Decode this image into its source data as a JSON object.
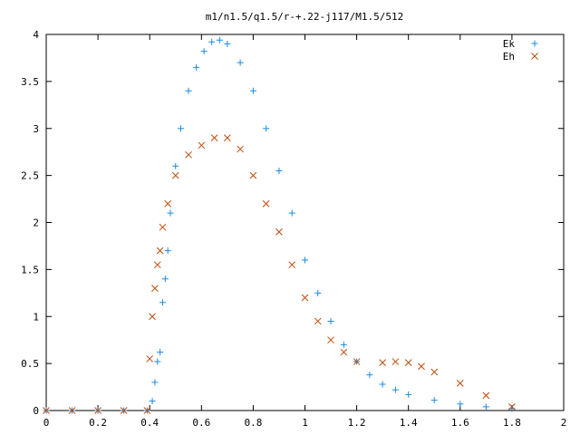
{
  "chart_data": {
    "type": "scatter",
    "title": "m1/n1.5/q1.5/r-+.22-j117/M1.5/512",
    "xlabel": "",
    "ylabel": "",
    "xlim": [
      0,
      2
    ],
    "ylim": [
      0,
      4
    ],
    "x_ticks": [
      "0",
      "0.2",
      "0.4",
      "0.6",
      "0.8",
      "1",
      "1.2",
      "1.4",
      "1.6",
      "1.8",
      "2"
    ],
    "y_ticks": [
      "0",
      "0.5",
      "1",
      "1.5",
      "2",
      "2.5",
      "3",
      "3.5",
      "4"
    ],
    "grid": false,
    "legend_position": "top-right",
    "series": [
      {
        "name": "Ek",
        "marker": "plus",
        "color": "#1a8de0",
        "x": [
          0.0,
          0.1,
          0.2,
          0.3,
          0.39,
          0.41,
          0.42,
          0.43,
          0.44,
          0.45,
          0.46,
          0.47,
          0.48,
          0.5,
          0.52,
          0.55,
          0.58,
          0.61,
          0.64,
          0.67,
          0.7,
          0.75,
          0.8,
          0.85,
          0.9,
          0.95,
          1.0,
          1.05,
          1.1,
          1.15,
          1.2,
          1.25,
          1.3,
          1.35,
          1.4,
          1.5,
          1.6,
          1.7,
          1.8
        ],
        "y": [
          0.0,
          0.0,
          0.0,
          0.0,
          0.0,
          0.1,
          0.3,
          0.52,
          0.62,
          1.15,
          1.4,
          1.7,
          2.1,
          2.6,
          3.0,
          3.4,
          3.65,
          3.82,
          3.92,
          3.94,
          3.9,
          3.7,
          3.4,
          3.0,
          2.55,
          2.1,
          1.6,
          1.25,
          0.95,
          0.7,
          0.52,
          0.38,
          0.28,
          0.22,
          0.17,
          0.11,
          0.07,
          0.04,
          0.02
        ]
      },
      {
        "name": "Eh",
        "marker": "cross",
        "color": "#c04a0a",
        "x": [
          0.0,
          0.1,
          0.2,
          0.3,
          0.39,
          0.4,
          0.41,
          0.42,
          0.43,
          0.44,
          0.45,
          0.47,
          0.5,
          0.55,
          0.6,
          0.65,
          0.7,
          0.75,
          0.8,
          0.85,
          0.9,
          0.95,
          1.0,
          1.05,
          1.1,
          1.15,
          1.2,
          1.3,
          1.35,
          1.4,
          1.45,
          1.5,
          1.6,
          1.7,
          1.8
        ],
        "y": [
          0.0,
          0.0,
          0.0,
          0.0,
          0.0,
          0.55,
          1.0,
          1.3,
          1.55,
          1.7,
          1.95,
          2.2,
          2.5,
          2.72,
          2.82,
          2.9,
          2.9,
          2.78,
          2.5,
          2.2,
          1.9,
          1.55,
          1.2,
          0.95,
          0.75,
          0.62,
          0.52,
          0.51,
          0.52,
          0.51,
          0.47,
          0.41,
          0.29,
          0.16,
          0.04
        ]
      }
    ]
  }
}
